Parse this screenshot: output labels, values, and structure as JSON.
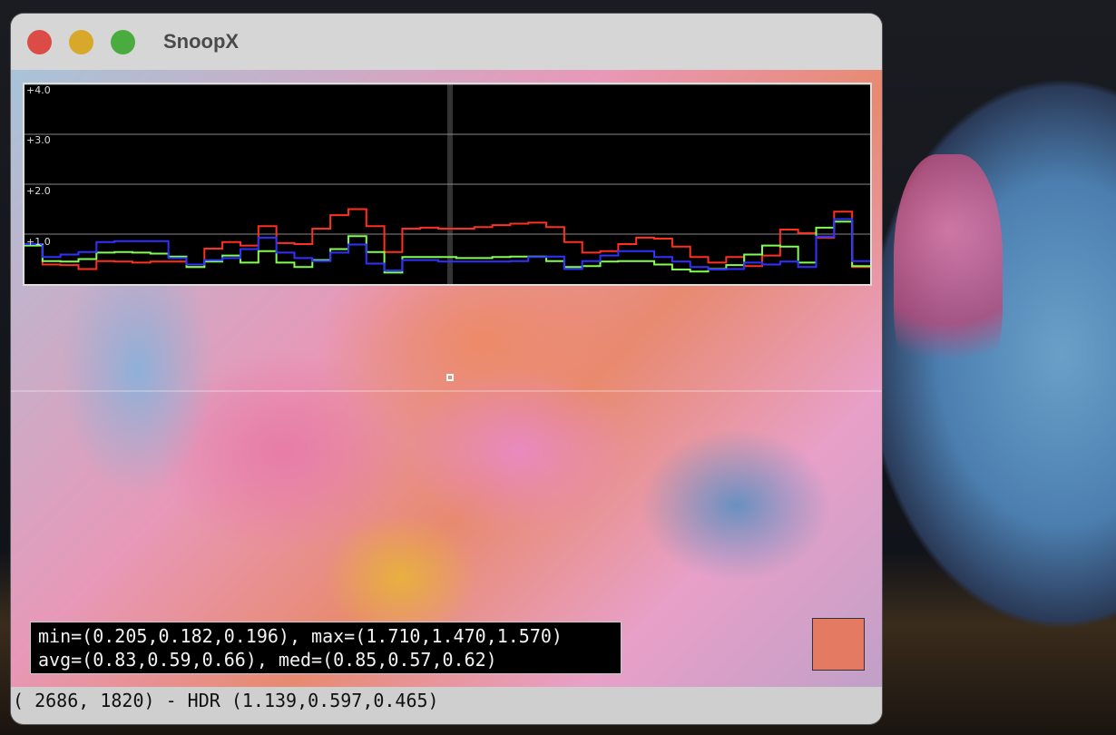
{
  "window": {
    "title": "SnoopX",
    "buttons": {
      "close": "#dc4c47",
      "minimize": "#d8a82a",
      "zoom": "#4aab3e"
    }
  },
  "chart_data": {
    "type": "line",
    "step": true,
    "ylim": [
      0,
      4
    ],
    "ytick_labels": [
      "+4.0",
      "+3.0",
      "+2.0",
      "+1.0"
    ],
    "yticks": [
      4,
      3,
      2,
      1
    ],
    "grid": true,
    "series": [
      {
        "color": "#ff3020",
        "values": [
          0.8,
          0.39,
          0.38,
          0.3,
          0.46,
          0.45,
          0.43,
          0.45,
          0.45,
          0.34,
          0.71,
          0.84,
          0.77,
          1.16,
          0.82,
          0.8,
          1.11,
          1.38,
          1.5,
          1.16,
          0.64,
          1.11,
          1.13,
          1.11,
          1.11,
          1.14,
          1.18,
          1.21,
          1.23,
          1.14,
          0.84,
          0.63,
          0.66,
          0.8,
          0.93,
          0.91,
          0.75,
          0.54,
          0.43,
          0.54,
          0.36,
          0.57,
          1.09,
          1.02,
          0.93,
          1.45,
          0.34
        ]
      },
      {
        "color": "#80ff50",
        "values": [
          0.77,
          0.46,
          0.45,
          0.5,
          0.63,
          0.64,
          0.63,
          0.61,
          0.55,
          0.34,
          0.45,
          0.57,
          0.43,
          0.66,
          0.43,
          0.34,
          0.48,
          0.7,
          0.96,
          0.64,
          0.23,
          0.54,
          0.54,
          0.54,
          0.52,
          0.52,
          0.54,
          0.55,
          0.55,
          0.46,
          0.34,
          0.36,
          0.45,
          0.46,
          0.46,
          0.39,
          0.29,
          0.25,
          0.3,
          0.38,
          0.59,
          0.77,
          0.75,
          0.43,
          1.13,
          1.25,
          0.36
        ]
      },
      {
        "color": "#3030ff",
        "values": [
          0.8,
          0.54,
          0.59,
          0.64,
          0.84,
          0.86,
          0.86,
          0.86,
          0.52,
          0.39,
          0.48,
          0.52,
          0.7,
          0.93,
          0.63,
          0.52,
          0.46,
          0.63,
          0.79,
          0.41,
          0.27,
          0.48,
          0.48,
          0.45,
          0.45,
          0.45,
          0.45,
          0.46,
          0.54,
          0.55,
          0.3,
          0.46,
          0.57,
          0.66,
          0.66,
          0.54,
          0.45,
          0.34,
          0.29,
          0.3,
          0.43,
          0.39,
          0.45,
          0.34,
          0.95,
          1.3,
          0.46
        ]
      }
    ]
  },
  "stats": {
    "line1": "min=(0.205,0.182,0.196), max=(1.710,1.470,1.570)",
    "line2": "avg=(0.83,0.59,0.66), med=(0.85,0.57,0.62)"
  },
  "swatch_color": "#e57a62",
  "status": "( 2686, 1820) - HDR (1.139,0.597,0.465)"
}
